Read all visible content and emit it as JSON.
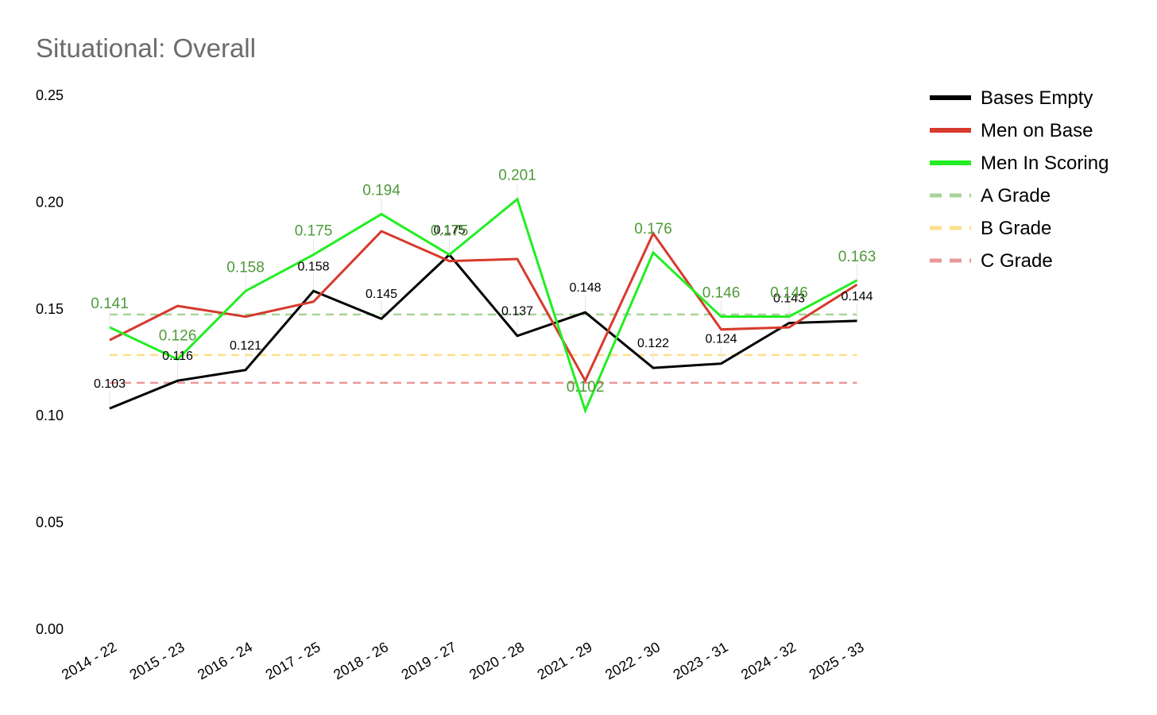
{
  "chart_data": {
    "type": "line",
    "title": "Situational: Overall",
    "xlabel": "",
    "ylabel": "",
    "ylim": [
      0,
      0.25
    ],
    "yticks": [
      "0.00",
      "0.05",
      "0.10",
      "0.15",
      "0.20",
      "0.25"
    ],
    "categories": [
      "2014 - 22",
      "2015 - 23",
      "2016 - 24",
      "2017 - 25",
      "2018 - 26",
      "2019 - 27",
      "2020 - 28",
      "2021 - 29",
      "2022 - 30",
      "2023 - 31",
      "2024 - 32",
      "2025 - 33"
    ],
    "series": [
      {
        "name": "Bases Empty",
        "color": "#000000",
        "values": [
          0.103,
          0.116,
          0.121,
          0.158,
          0.145,
          0.175,
          0.137,
          0.148,
          0.122,
          0.124,
          0.143,
          0.144
        ],
        "labels": [
          "0.103",
          "0.116",
          "0.121",
          "0.158",
          "0.145",
          "0.175",
          "0.137",
          "0.148",
          "0.122",
          "0.124",
          "0.143",
          "0.144"
        ]
      },
      {
        "name": "Men on Base",
        "color": "#d63a2e",
        "values": [
          0.135,
          0.151,
          0.146,
          0.153,
          0.186,
          0.172,
          0.173,
          0.116,
          0.185,
          0.14,
          0.141,
          0.161
        ],
        "labels": []
      },
      {
        "name": "Men In Scoring",
        "color": "#22ee22",
        "values": [
          0.141,
          0.126,
          0.158,
          0.175,
          0.194,
          0.175,
          0.201,
          0.102,
          0.176,
          0.146,
          0.146,
          0.163
        ],
        "labels": [
          "0.141",
          "0.126",
          "0.158",
          "0.175",
          "0.194",
          "0.175",
          "0.201",
          "0.102",
          "0.176",
          "0.146",
          "0.146",
          "0.163"
        ]
      }
    ],
    "reference_lines": [
      {
        "name": "A Grade",
        "value": 0.147,
        "color": "#a8d49a"
      },
      {
        "name": "B Grade",
        "value": 0.128,
        "color": "#fde08a"
      },
      {
        "name": "C Grade",
        "value": 0.115,
        "color": "#e89898"
      }
    ],
    "legend": {
      "placement": "top-right",
      "entries": [
        "Bases Empty",
        "Men on Base",
        "Men In Scoring",
        "A Grade",
        "B Grade",
        "C Grade"
      ]
    },
    "grid": false
  }
}
